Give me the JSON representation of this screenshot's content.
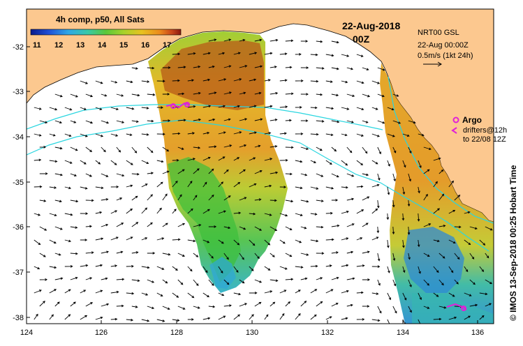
{
  "map": {
    "composite_label": "4h comp, p50, All Sats",
    "date": "22-Aug-2018",
    "time": "00Z",
    "product": "NRT00 GSL",
    "product_time": "22-Aug 00:00Z",
    "scale_label": "0.5m/s (1kt 24h)",
    "argo_label": "Argo",
    "drifters_label": "drifters@12h",
    "drifters_to": "to 22/08 12Z",
    "credit": "© IMOS 13-Sep-2018 00:25 Hobart Time",
    "colorbar": {
      "ticks": [
        "11",
        "12",
        "13",
        "14",
        "15",
        "16",
        "17"
      ],
      "colors": [
        "#0a1a8c",
        "#1f4fd6",
        "#2fa7e6",
        "#38c9a7",
        "#5bc83a",
        "#a8d22a",
        "#e8c21f",
        "#eb8a1c",
        "#c9461a",
        "#8a1a10"
      ]
    },
    "x_ticks": [
      "124",
      "126",
      "128",
      "130",
      "132",
      "134",
      "136"
    ],
    "y_ticks": [
      "-32",
      "-33",
      "-34",
      "-35",
      "-36",
      "-37",
      "-38"
    ],
    "colors": {
      "land": "#fcc88f",
      "ocean": "#ffffff",
      "isobath": "#2ad6e0",
      "argo": "#e020d8"
    }
  }
}
